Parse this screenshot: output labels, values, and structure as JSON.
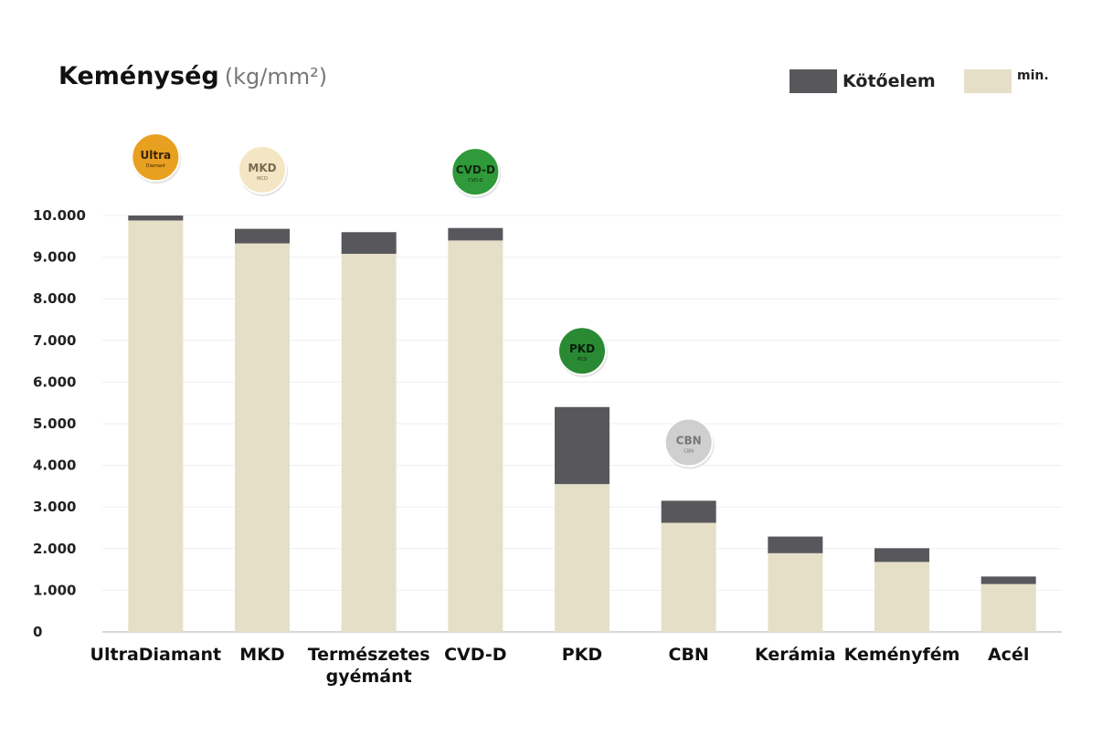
{
  "chart_data": {
    "type": "bar",
    "stacked": true,
    "title": "Keménység",
    "unit": "(kg/mm²)",
    "categories": [
      "UltraDiamant",
      "MKD",
      "Természetes gyémánt",
      "CVD-D",
      "PKD",
      "CBN",
      "Kerámia",
      "Keményfém",
      "Acél"
    ],
    "series": [
      {
        "name": "min.",
        "color": "#e6dfc8",
        "values": [
          9880,
          9330,
          9080,
          9400,
          3550,
          2620,
          1890,
          1680,
          1150
        ]
      },
      {
        "name": "Kötőelem",
        "color": "#58585c",
        "values": [
          120,
          350,
          520,
          300,
          1850,
          530,
          400,
          330,
          180
        ]
      }
    ],
    "ylim": [
      0,
      10000
    ],
    "yticks": [
      0,
      1000,
      2000,
      3000,
      4000,
      5000,
      6000,
      7000,
      8000,
      9000,
      10000
    ],
    "ytick_labels": [
      "0",
      "1.000",
      "2.000",
      "3.000",
      "4.000",
      "5.000",
      "6.000",
      "7.000",
      "8.000",
      "9.000",
      "10.000"
    ],
    "grid": true,
    "legend_position": "top-right",
    "badges": [
      {
        "category": "UltraDiamant",
        "main": "Ultra",
        "sub": "Diamant",
        "color": "#e8a020",
        "text_color": "#3a2408",
        "position_value": 11400
      },
      {
        "category": "MKD",
        "main": "MKD",
        "sub": "MCD",
        "color": "#f4e6c4",
        "text_color": "#7a6a50",
        "position_value": 11100
      },
      {
        "category": "CVD-D",
        "main": "CVD-D",
        "sub": "CVD-D",
        "color": "#2f9a3a",
        "text_color": "#0e260f",
        "position_value": 11050
      },
      {
        "category": "PKD",
        "main": "PKD",
        "sub": "PCD",
        "color": "#2a8a34",
        "text_color": "#0a1e0b",
        "position_value": 6750
      },
      {
        "category": "CBN",
        "main": "CBN",
        "sub": "CBN",
        "color": "#cfcfcf",
        "text_color": "#777777",
        "position_value": 4550
      }
    ]
  }
}
